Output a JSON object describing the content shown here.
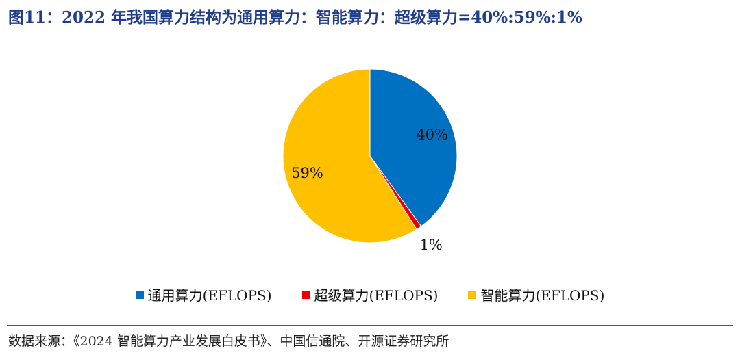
{
  "chart_data": {
    "type": "pie",
    "title": "图11：2022 年我国算力结构为通用算力：智能算力：超级算力=40%:59%:1%",
    "slices": [
      {
        "name": "通用算力(EFLOPS)",
        "value": 40,
        "label": "40%",
        "color": "#0070c0"
      },
      {
        "name": "超级算力(EFLOPS)",
        "value": 1,
        "label": "1%",
        "color": "#ee0000"
      },
      {
        "name": "智能算力(EFLOPS)",
        "value": 59,
        "label": "59%",
        "color": "#ffc000"
      }
    ],
    "start_angle": "12 o'clock",
    "direction": "clockwise",
    "legend_position": "bottom"
  },
  "source": "数据来源：《2024 智能算力产业发展白皮书》、中国信通院、开源证券研究所"
}
